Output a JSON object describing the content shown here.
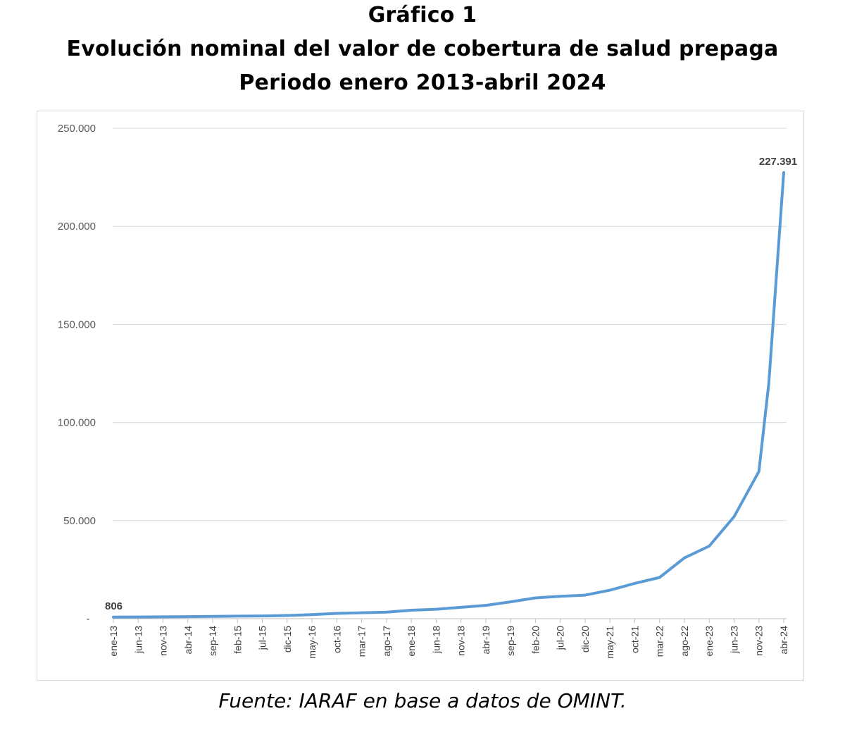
{
  "title": {
    "line1": "Gráfico 1",
    "line2": "Evolución nominal del valor de cobertura de salud prepaga",
    "line3": "Periodo enero 2013-abril 2024"
  },
  "source": "Fuente: IARAF en base a datos de OMINT.",
  "chart_data": {
    "type": "line",
    "grid": true,
    "line_color": "#5b9bd5",
    "ylim": [
      0,
      250000
    ],
    "y_ticks": [
      {
        "value": 0,
        "label": "-"
      },
      {
        "value": 50000,
        "label": "50.000"
      },
      {
        "value": 100000,
        "label": "100.000"
      },
      {
        "value": 150000,
        "label": "150.000"
      },
      {
        "value": 200000,
        "label": "200.000"
      },
      {
        "value": 250000,
        "label": "250.000"
      }
    ],
    "x_ticks": [
      {
        "date": "2013-01",
        "label": "ene-13"
      },
      {
        "date": "2013-06",
        "label": "jun-13"
      },
      {
        "date": "2013-11",
        "label": "nov-13"
      },
      {
        "date": "2014-04",
        "label": "abr-14"
      },
      {
        "date": "2014-09",
        "label": "sep-14"
      },
      {
        "date": "2015-02",
        "label": "feb-15"
      },
      {
        "date": "2015-07",
        "label": "jul-15"
      },
      {
        "date": "2015-12",
        "label": "dic-15"
      },
      {
        "date": "2016-05",
        "label": "may-16"
      },
      {
        "date": "2016-10",
        "label": "oct-16"
      },
      {
        "date": "2017-03",
        "label": "mar-17"
      },
      {
        "date": "2017-08",
        "label": "ago-17"
      },
      {
        "date": "2018-01",
        "label": "ene-18"
      },
      {
        "date": "2018-06",
        "label": "jun-18"
      },
      {
        "date": "2018-11",
        "label": "nov-18"
      },
      {
        "date": "2019-04",
        "label": "abr-19"
      },
      {
        "date": "2019-09",
        "label": "sep-19"
      },
      {
        "date": "2020-02",
        "label": "feb-20"
      },
      {
        "date": "2020-07",
        "label": "jul-20"
      },
      {
        "date": "2020-12",
        "label": "dic-20"
      },
      {
        "date": "2021-05",
        "label": "may-21"
      },
      {
        "date": "2021-10",
        "label": "oct-21"
      },
      {
        "date": "2022-03",
        "label": "mar-22"
      },
      {
        "date": "2022-08",
        "label": "ago-22"
      },
      {
        "date": "2023-01",
        "label": "ene-23"
      },
      {
        "date": "2023-06",
        "label": "jun-23"
      },
      {
        "date": "2023-11",
        "label": "nov-23"
      },
      {
        "date": "2024-04",
        "label": "abr-24"
      }
    ],
    "series": [
      {
        "points": [
          [
            "2013-01",
            806
          ],
          [
            "2013-06",
            850
          ],
          [
            "2013-11",
            950
          ],
          [
            "2014-04",
            1050
          ],
          [
            "2014-09",
            1150
          ],
          [
            "2015-02",
            1300
          ],
          [
            "2015-07",
            1400
          ],
          [
            "2015-12",
            1600
          ],
          [
            "2016-05",
            2100
          ],
          [
            "2016-10",
            2700
          ],
          [
            "2017-03",
            3000
          ],
          [
            "2017-08",
            3300
          ],
          [
            "2018-01",
            4300
          ],
          [
            "2018-06",
            4800
          ],
          [
            "2018-11",
            5800
          ],
          [
            "2019-04",
            6800
          ],
          [
            "2019-09",
            8600
          ],
          [
            "2020-02",
            10600
          ],
          [
            "2020-07",
            11400
          ],
          [
            "2020-12",
            12000
          ],
          [
            "2021-05",
            14500
          ],
          [
            "2021-10",
            18000
          ],
          [
            "2022-03",
            21000
          ],
          [
            "2022-08",
            31000
          ],
          [
            "2023-01",
            37000
          ],
          [
            "2023-06",
            52000
          ],
          [
            "2023-11",
            75000
          ],
          [
            "2024-01",
            120000
          ],
          [
            "2024-04",
            227391
          ]
        ]
      }
    ],
    "data_labels": [
      {
        "date": "2013-01",
        "value": 806,
        "text": "806"
      },
      {
        "date": "2024-04",
        "value": 227391,
        "text": "227.391"
      }
    ]
  }
}
